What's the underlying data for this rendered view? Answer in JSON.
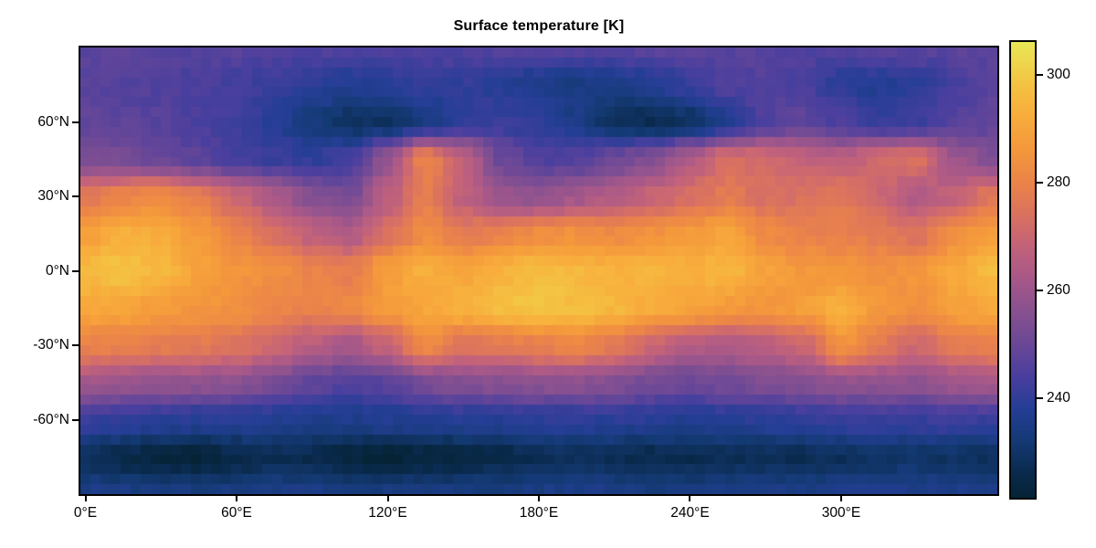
{
  "title": "Surface temperature [K]",
  "colors": {
    "figure_background": "#ffffff",
    "axis_line": "#000000",
    "text": "#000000"
  },
  "chart_data": {
    "type": "heatmap",
    "title": "Surface temperature [K]",
    "xlabel": "",
    "ylabel": "",
    "grid_lines": false,
    "x_axis": {
      "range": [
        -2,
        362
      ],
      "ticks": [
        {
          "value": 0,
          "label": "0°E"
        },
        {
          "value": 60,
          "label": "60°E"
        },
        {
          "value": 120,
          "label": "120°E"
        },
        {
          "value": 180,
          "label": "180°E"
        },
        {
          "value": 240,
          "label": "240°E"
        },
        {
          "value": 300,
          "label": "300°E"
        }
      ]
    },
    "y_axis": {
      "range": [
        -90,
        90
      ],
      "ticks": [
        {
          "value": 60,
          "label": "60°N"
        },
        {
          "value": 30,
          "label": "30°N"
        },
        {
          "value": 0,
          "label": "0°N"
        },
        {
          "value": -30,
          "label": "-30°N"
        },
        {
          "value": -60,
          "label": "-60°N"
        }
      ]
    },
    "colorbar": {
      "vmin": 221.5,
      "vmax": 306.1,
      "ticks": [
        {
          "value": 300,
          "label": "300"
        },
        {
          "value": 280,
          "label": "280"
        },
        {
          "value": 260,
          "label": "260"
        },
        {
          "value": 240,
          "label": "240"
        }
      ],
      "colormap_name": "thermal",
      "colormap_stops": [
        [
          221,
          "#052334"
        ],
        [
          226,
          "#0a2a4d"
        ],
        [
          232,
          "#143a75"
        ],
        [
          238,
          "#253e96"
        ],
        [
          244,
          "#4a3f9e"
        ],
        [
          250,
          "#6b4897"
        ],
        [
          256,
          "#885190"
        ],
        [
          262,
          "#a75889"
        ],
        [
          268,
          "#c2627b"
        ],
        [
          274,
          "#da7260"
        ],
        [
          280,
          "#eb8449"
        ],
        [
          286,
          "#f4983c"
        ],
        [
          292,
          "#f8ac3c"
        ],
        [
          298,
          "#f4c242"
        ],
        [
          303,
          "#eeda4f"
        ],
        [
          306,
          "#e9e956"
        ]
      ]
    },
    "grid": {
      "units": "K",
      "lons": [
        0,
        15,
        30,
        45,
        60,
        75,
        90,
        105,
        120,
        135,
        150,
        165,
        180,
        195,
        210,
        225,
        240,
        255,
        270,
        285,
        300,
        315,
        330,
        345,
        360
      ],
      "lats": [
        90,
        75,
        60,
        45,
        30,
        15,
        0,
        -15,
        -30,
        -45,
        -60,
        -75,
        -90
      ],
      "values": [
        [
          247,
          247,
          246,
          246,
          246,
          245,
          245,
          245,
          245,
          245,
          245,
          246,
          246,
          246,
          246,
          247,
          247,
          246,
          246,
          245,
          245,
          246,
          246,
          247,
          247
        ],
        [
          247,
          246,
          245,
          244,
          243,
          241,
          239,
          237,
          238,
          240,
          240,
          238,
          235,
          234,
          235,
          237,
          241,
          245,
          246,
          244,
          239,
          237,
          239,
          243,
          247
        ],
        [
          248,
          247,
          246,
          244,
          242,
          238,
          233,
          229,
          229,
          234,
          240,
          241,
          240,
          235,
          228,
          227,
          229,
          236,
          245,
          248,
          244,
          241,
          242,
          246,
          248
        ],
        [
          254,
          252,
          250,
          247,
          243,
          241,
          240,
          243,
          258,
          280,
          268,
          250,
          245,
          246,
          250,
          255,
          264,
          273,
          272,
          268,
          266,
          272,
          274,
          260,
          254
        ],
        [
          276,
          280,
          282,
          278,
          270,
          263,
          255,
          252,
          266,
          278,
          267,
          259,
          257,
          261,
          265,
          269,
          273,
          277,
          273,
          274,
          276,
          270,
          264,
          268,
          276
        ],
        [
          288,
          293,
          292,
          287,
          280,
          273,
          267,
          264,
          274,
          282,
          277,
          279,
          283,
          284,
          282,
          284,
          287,
          289,
          282,
          279,
          279,
          277,
          274,
          283,
          288
        ],
        [
          296,
          298,
          295,
          289,
          285,
          284,
          280,
          278,
          288,
          293,
          290,
          293,
          297,
          295,
          293,
          294,
          293,
          295,
          289,
          286,
          285,
          284,
          285,
          291,
          296
        ],
        [
          291,
          290,
          287,
          285,
          284,
          281,
          279,
          282,
          287,
          290,
          294,
          297,
          299,
          297,
          295,
          292,
          289,
          287,
          285,
          288,
          293,
          286,
          284,
          288,
          291
        ],
        [
          280,
          279,
          278,
          277,
          275,
          271,
          266,
          262,
          269,
          283,
          275,
          277,
          279,
          281,
          277,
          270,
          265,
          263,
          266,
          270,
          285,
          277,
          271,
          277,
          280
        ],
        [
          262,
          260,
          259,
          258,
          257,
          253,
          248,
          245,
          247,
          253,
          255,
          256,
          257,
          257,
          255,
          252,
          250,
          252,
          254,
          255,
          258,
          258,
          257,
          260,
          262
        ],
        [
          241,
          240,
          239,
          238,
          238,
          237,
          236,
          236,
          237,
          238,
          238,
          238,
          239,
          239,
          239,
          238,
          237,
          238,
          239,
          240,
          241,
          241,
          241,
          242,
          241
        ],
        [
          228,
          225,
          223,
          222,
          225,
          227,
          226,
          223,
          222,
          223,
          224,
          225,
          227,
          228,
          227,
          226,
          226,
          227,
          227,
          227,
          228,
          229,
          230,
          229,
          228
        ],
        [
          235,
          235,
          234,
          234,
          234,
          235,
          235,
          234,
          234,
          234,
          234,
          234,
          235,
          235,
          235,
          234,
          234,
          235,
          235,
          235,
          236,
          236,
          236,
          236,
          235
        ]
      ]
    }
  }
}
